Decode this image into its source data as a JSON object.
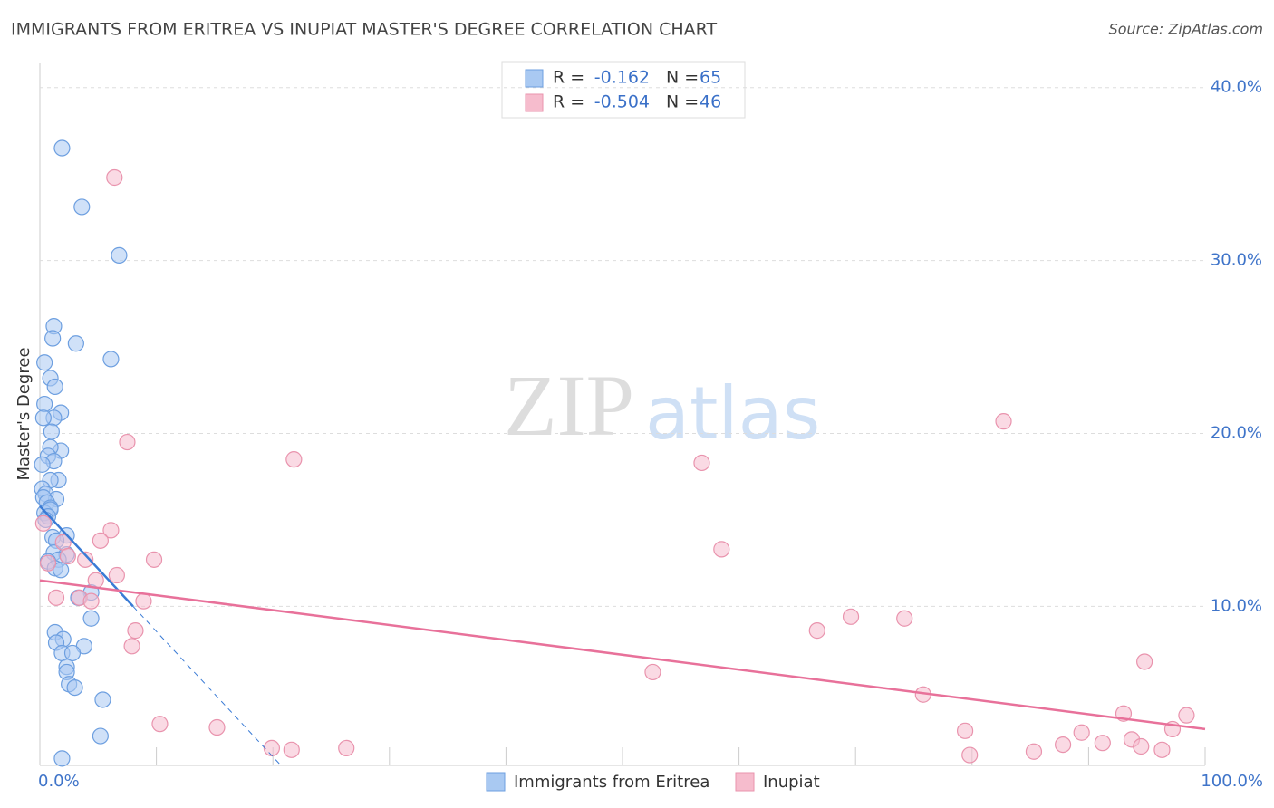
{
  "chart_data": {
    "type": "scatter",
    "title": "IMMIGRANTS FROM ERITREA VS INUPIAT MASTER'S DEGREE CORRELATION CHART",
    "source": "Source: ZipAtlas.com",
    "ylabel": "Master's Degree",
    "watermark": [
      "ZIP",
      "atlas"
    ],
    "xlim": [
      0,
      100
    ],
    "ylim": [
      0.8,
      41.4
    ],
    "xticks": [
      {
        "value": 0,
        "label": "0.0%"
      },
      {
        "value": 100,
        "label": "100.0%"
      }
    ],
    "xticks_minor": [
      10,
      20,
      30,
      40,
      50,
      60,
      70,
      80,
      90
    ],
    "yticks": [
      {
        "value": 10,
        "label": "10.0%"
      },
      {
        "value": 20,
        "label": "20.0%"
      },
      {
        "value": 30,
        "label": "30.0%"
      },
      {
        "value": 40,
        "label": "40.0%"
      }
    ],
    "grid": true,
    "stats": [
      {
        "r_label": "R = ",
        "r": -0.162,
        "n_label": "N = ",
        "n": 65
      },
      {
        "r_label": "R = ",
        "r": -0.504,
        "n_label": "N = ",
        "n": 46
      }
    ],
    "series": [
      {
        "name": "Immigrants from Eritrea",
        "color": "#a9c9f2",
        "edge": "#6d9fe0",
        "line_color": "#3a7bd5",
        "trend": {
          "x": [
            0,
            8
          ],
          "y": [
            15.8,
            10.0
          ],
          "dashed_extension": true
        },
        "x": [
          1.9,
          3.6,
          6.8,
          1.2,
          1.1,
          3.1,
          6.1,
          0.4,
          0.9,
          1.3,
          0.4,
          1.8,
          1.2,
          0.3,
          1.0,
          1.8,
          0.9,
          0.7,
          1.2,
          0.2,
          1.6,
          0.9,
          0.2,
          0.5,
          1.4,
          0.3,
          0.6,
          0.9,
          0.4,
          0.9,
          0.7,
          0.5,
          2.3,
          1.1,
          1.4,
          1.2,
          2.3,
          1.6,
          0.7,
          1.3,
          1.8,
          4.4,
          3.3,
          4.4,
          1.3,
          2.0,
          1.4,
          3.8,
          1.9,
          2.8,
          2.3,
          2.3,
          2.5,
          3.0,
          5.4,
          5.2,
          1.9
        ],
        "values": [
          36.5,
          33.1,
          30.3,
          26.2,
          25.5,
          25.2,
          24.3,
          24.1,
          23.2,
          22.7,
          21.7,
          21.2,
          20.9,
          20.9,
          20.1,
          19.0,
          19.2,
          18.7,
          18.4,
          18.2,
          17.3,
          17.3,
          16.8,
          16.5,
          16.2,
          16.3,
          16.0,
          15.7,
          15.4,
          15.6,
          15.2,
          15.0,
          14.1,
          14.0,
          13.8,
          13.1,
          13.0,
          12.7,
          12.6,
          12.2,
          12.1,
          10.8,
          10.5,
          9.3,
          8.5,
          8.1,
          7.9,
          7.7,
          7.3,
          7.3,
          6.5,
          6.2,
          5.5,
          5.3,
          4.6,
          2.5,
          1.2
        ]
      },
      {
        "name": "Inupiat",
        "color": "#f6bccd",
        "edge": "#e993ad",
        "line_color": "#e8719a",
        "trend": {
          "x": [
            0,
            100
          ],
          "y": [
            11.5,
            2.9
          ],
          "dashed_extension": false
        },
        "x": [
          6.4,
          7.5,
          21.8,
          82.7,
          56.8,
          58.5,
          6.1,
          5.2,
          9.8,
          2.0,
          2.4,
          3.9,
          0.7,
          4.8,
          6.6,
          1.4,
          3.4,
          4.4,
          8.9,
          8.2,
          7.9,
          66.7,
          69.6,
          74.2,
          52.6,
          94.8,
          75.8,
          10.3,
          15.2,
          19.9,
          21.6,
          26.3,
          79.4,
          79.8,
          85.3,
          87.8,
          89.4,
          91.2,
          93.0,
          93.7,
          94.5,
          96.3,
          97.2,
          98.4,
          0.3
        ],
        "values": [
          34.8,
          19.5,
          18.5,
          20.7,
          18.3,
          13.3,
          14.4,
          13.8,
          12.7,
          13.7,
          12.9,
          12.7,
          12.5,
          11.5,
          11.8,
          10.5,
          10.5,
          10.3,
          10.3,
          8.6,
          7.7,
          8.6,
          9.4,
          9.3,
          6.2,
          6.8,
          4.9,
          3.2,
          3.0,
          1.8,
          1.7,
          1.8,
          2.8,
          1.4,
          1.6,
          2.0,
          2.7,
          2.1,
          3.8,
          2.3,
          1.9,
          1.7,
          2.9,
          3.7,
          14.8
        ]
      }
    ]
  }
}
